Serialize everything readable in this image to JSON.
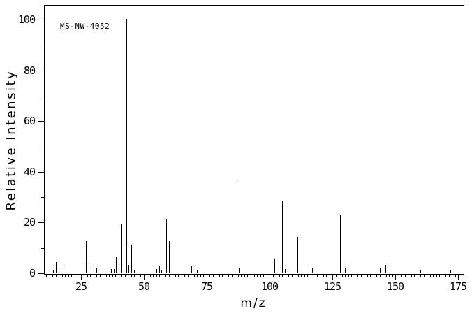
{
  "annotation": {
    "label": "MS-NW-4052"
  },
  "colors": {
    "background": "#ffffff",
    "line": "#000000",
    "text": "#000000"
  },
  "chart_data": {
    "type": "bar",
    "subtype": "mass-spectrum-sticks",
    "title": "MS-NW-4052",
    "xlabel": "m/z",
    "ylabel": "Relative Intensity",
    "xlim": [
      10.28,
      177.22
    ],
    "ylim": [
      0,
      105.8
    ],
    "grid": false,
    "legend": null,
    "x_major_ticks": [
      25,
      50,
      75,
      100,
      125,
      150,
      175
    ],
    "x_minor_step": 1.25,
    "y_major_ticks": [
      0,
      20,
      40,
      60,
      80,
      100
    ],
    "y_minor_step": 10,
    "base_peak": {
      "mz": 43,
      "intensity": 100
    },
    "peaks": [
      [
        14,
        1.0
      ],
      [
        15,
        4.0
      ],
      [
        17,
        1.5
      ],
      [
        18,
        2.0
      ],
      [
        19,
        1.0
      ],
      [
        26,
        2.0
      ],
      [
        27,
        12.5
      ],
      [
        28,
        3.0
      ],
      [
        29,
        2.3
      ],
      [
        31,
        2.0
      ],
      [
        37,
        1.5
      ],
      [
        38,
        1.5
      ],
      [
        39,
        6.0
      ],
      [
        40,
        1.8
      ],
      [
        41,
        19.0
      ],
      [
        42,
        11.3
      ],
      [
        43,
        100.0
      ],
      [
        44,
        3.0
      ],
      [
        45,
        11.0
      ],
      [
        46,
        1.0
      ],
      [
        55,
        1.5
      ],
      [
        56,
        2.7
      ],
      [
        57,
        1.0
      ],
      [
        59,
        21.0
      ],
      [
        60,
        12.5
      ],
      [
        61,
        1.2
      ],
      [
        69,
        2.5
      ],
      [
        71,
        1.0
      ],
      [
        86,
        1.0
      ],
      [
        87,
        35.0
      ],
      [
        88,
        1.6
      ],
      [
        102,
        5.5
      ],
      [
        105,
        28.0
      ],
      [
        106,
        1.5
      ],
      [
        111,
        14.0
      ],
      [
        112,
        0.8
      ],
      [
        117,
        2.0
      ],
      [
        128,
        22.5
      ],
      [
        130,
        2.0
      ],
      [
        131,
        3.5
      ],
      [
        144,
        1.7
      ],
      [
        146,
        3.0
      ],
      [
        160,
        1.2
      ],
      [
        172,
        1.2
      ]
    ]
  }
}
